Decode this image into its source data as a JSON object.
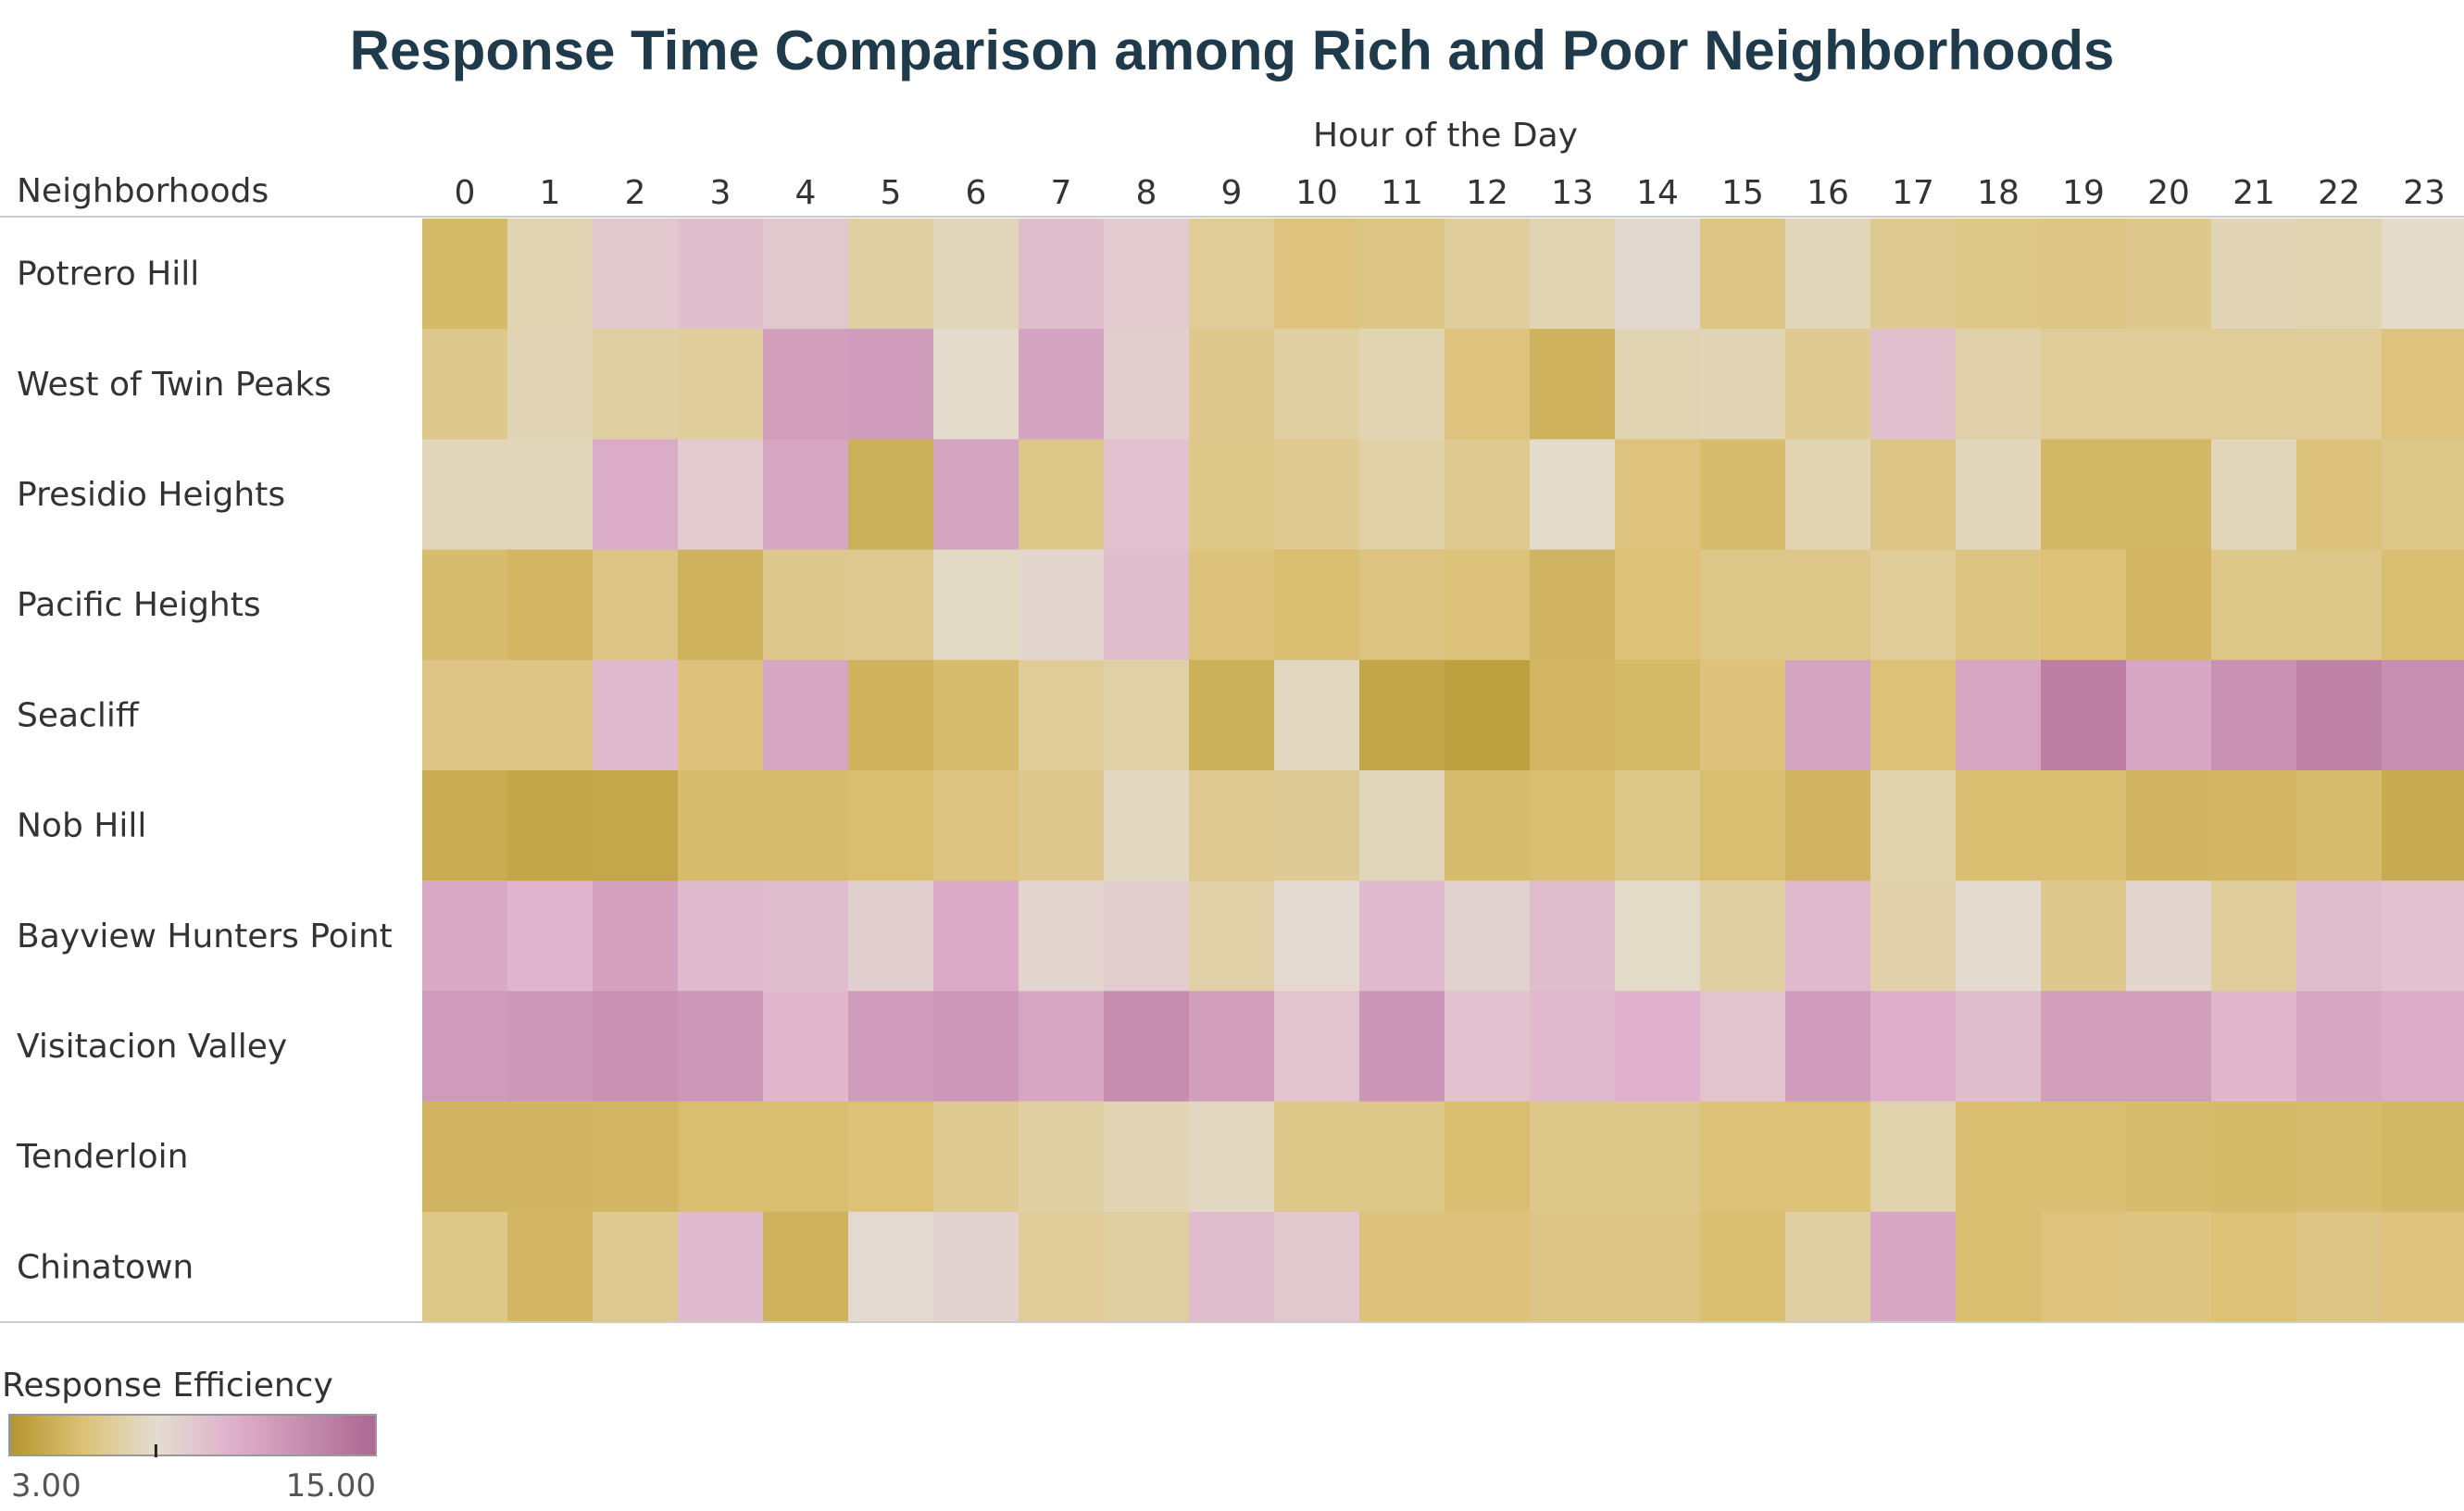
{
  "title": "Response Time Comparison among Rich and Poor Neighborhoods",
  "chart_data": {
    "type": "heatmap",
    "title": "Response Time Comparison among Rich and Poor Neighborhoods",
    "xlabel": "Hour of the Day",
    "ylabel": "Neighborhoods",
    "x": [
      "0",
      "1",
      "2",
      "3",
      "4",
      "5",
      "6",
      "7",
      "8",
      "9",
      "10",
      "11",
      "12",
      "13",
      "14",
      "15",
      "16",
      "17",
      "18",
      "19",
      "20",
      "21",
      "22",
      "23"
    ],
    "y": [
      "Potrero Hill",
      "West of Twin Peaks",
      "Presidio Heights",
      "Pacific Heights",
      "Seacliff",
      "Nob Hill",
      "Bayview Hunters Point",
      "Visitacion Valley",
      "Tenderloin",
      "Chinatown"
    ],
    "values": [
      [
        5.0,
        7.0,
        8.9,
        9.5,
        9.0,
        6.6,
        7.2,
        9.5,
        8.8,
        6.3,
        5.6,
        5.8,
        6.4,
        7.0,
        8.1,
        5.8,
        7.2,
        6.1,
        5.9,
        5.8,
        6.0,
        7.1,
        7.0,
        7.7
      ],
      [
        6.0,
        7.1,
        6.5,
        6.4,
        11.5,
        11.6,
        7.7,
        11.2,
        8.7,
        6.0,
        6.6,
        7.0,
        5.6,
        4.6,
        7.0,
        7.1,
        6.1,
        9.4,
        6.8,
        6.3,
        6.3,
        6.3,
        6.3,
        5.6
      ],
      [
        7.2,
        7.2,
        10.6,
        8.8,
        11.0,
        4.5,
        11.1,
        5.9,
        9.3,
        5.9,
        6.1,
        6.7,
        6.1,
        7.7,
        5.6,
        5.1,
        7.0,
        5.8,
        7.3,
        4.9,
        4.9,
        7.2,
        5.5,
        5.9
      ],
      [
        5.1,
        4.8,
        5.8,
        4.6,
        6.0,
        6.1,
        7.5,
        8.2,
        9.5,
        5.5,
        5.2,
        5.7,
        5.5,
        4.7,
        5.4,
        5.9,
        5.9,
        6.3,
        5.7,
        5.4,
        4.8,
        5.9,
        5.9,
        5.3
      ],
      [
        5.8,
        5.8,
        9.7,
        5.5,
        11.0,
        4.6,
        5.1,
        6.3,
        6.7,
        4.5,
        7.4,
        3.9,
        3.6,
        4.8,
        5.0,
        5.5,
        11.1,
        5.4,
        11.0,
        13.5,
        11.0,
        12.4,
        13.3,
        12.5
      ],
      [
        4.3,
        3.9,
        4.0,
        5.1,
        5.1,
        5.3,
        5.7,
        6.0,
        7.4,
        6.1,
        6.2,
        7.2,
        5.1,
        5.3,
        5.9,
        5.3,
        4.7,
        6.9,
        5.3,
        5.3,
        4.7,
        4.8,
        5.1,
        4.2
      ],
      [
        10.8,
        10.1,
        11.3,
        9.7,
        9.6,
        8.6,
        10.7,
        8.3,
        8.7,
        6.7,
        8.0,
        9.7,
        8.4,
        9.6,
        7.6,
        6.5,
        9.8,
        6.8,
        7.9,
        6.0,
        8.2,
        6.4,
        9.6,
        9.3
      ],
      [
        11.7,
        11.9,
        12.3,
        11.8,
        9.9,
        11.6,
        11.8,
        11.0,
        12.6,
        11.5,
        9.2,
        12.0,
        9.3,
        9.8,
        10.3,
        9.2,
        11.6,
        10.4,
        9.6,
        11.5,
        11.5,
        9.9,
        10.9,
        10.5
      ],
      [
        4.7,
        4.7,
        4.8,
        5.2,
        5.2,
        5.4,
        6.1,
        6.6,
        7.1,
        7.4,
        5.9,
        5.9,
        5.3,
        5.9,
        5.9,
        5.4,
        5.4,
        6.9,
        5.3,
        5.3,
        5.1,
        5.0,
        5.1,
        4.9
      ],
      [
        5.9,
        4.8,
        6.1,
        9.7,
        4.6,
        8.0,
        8.4,
        6.3,
        6.5,
        9.6,
        9.0,
        5.5,
        5.5,
        5.8,
        5.8,
        5.3,
        6.6,
        10.9,
        5.2,
        5.6,
        5.7,
        5.4,
        5.8,
        5.6
      ]
    ],
    "colorbar": {
      "title": "Response Efficiency",
      "min": 3.0,
      "max": 15.0,
      "min_label": "3.00",
      "max_label": "15.00",
      "center_marker": 7.8,
      "low_color": "#b2952d",
      "mid_low_color": "#dcc176",
      "center_color": "#e3ddd0",
      "mid_high_color": "#dfb2cc",
      "high_color": "#ac6891"
    },
    "grid": false,
    "legend_position": "bottom-left"
  }
}
